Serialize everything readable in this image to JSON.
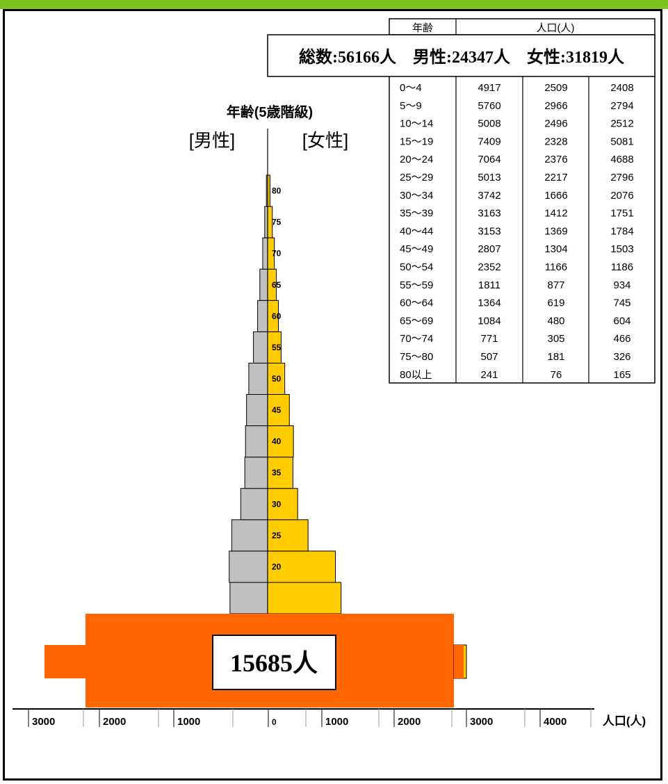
{
  "heading": "年齢(5歳階級)",
  "male_label": "[男性]",
  "female_label": "[女性]",
  "totals_text": "総数:56166人　男性:24347人　女性:31819人",
  "highlight_box_text": "15685人",
  "axis_unit_label": "人口(人)",
  "colors": {
    "male": "#C0C0C0",
    "female": "#FFCC00",
    "highlight": "#FF6600",
    "frame_top": "#7CC421"
  },
  "table": {
    "header_age": "年齢",
    "header_population": "人口(人)",
    "rows": [
      [
        "0～4",
        "4917",
        "2509",
        "2408"
      ],
      [
        "5～9",
        "5760",
        "2966",
        "2794"
      ],
      [
        "10～14",
        "5008",
        "2496",
        "2512"
      ],
      [
        "15～19",
        "7409",
        "2328",
        "5081"
      ],
      [
        "20～24",
        "7064",
        "2376",
        "4688"
      ],
      [
        "25～29",
        "5013",
        "2217",
        "2796"
      ],
      [
        "30～34",
        "3742",
        "1666",
        "2076"
      ],
      [
        "35～39",
        "3163",
        "1412",
        "1751"
      ],
      [
        "40～44",
        "3153",
        "1369",
        "1784"
      ],
      [
        "45～49",
        "2807",
        "1304",
        "1503"
      ],
      [
        "50～54",
        "2352",
        "1166",
        "1186"
      ],
      [
        "55～59",
        "1811",
        "877",
        "934"
      ],
      [
        "60～64",
        "1364",
        "619",
        "745"
      ],
      [
        "65～69",
        "1084",
        "480",
        "604"
      ],
      [
        "70～74",
        "771",
        "305",
        "466"
      ],
      [
        "75～80",
        "507",
        "181",
        "326"
      ],
      [
        "80以上",
        "241",
        "76",
        "165"
      ]
    ]
  },
  "chart_data": {
    "type": "bar",
    "subtype": "population-pyramid",
    "categories": [
      "0～4",
      "5～9",
      "10～14",
      "15～19",
      "20～24",
      "25～29",
      "30～34",
      "35～39",
      "40～44",
      "45～49",
      "50～54",
      "55～59",
      "60～64",
      "65～69",
      "70～74",
      "75～80",
      "80以上"
    ],
    "series": [
      {
        "name": "男性",
        "values": [
          2509,
          2966,
          2496,
          2328,
          2376,
          2217,
          1666,
          1412,
          1369,
          1304,
          1166,
          877,
          619,
          480,
          305,
          181,
          76
        ]
      },
      {
        "name": "女性",
        "values": [
          2408,
          2794,
          2512,
          5081,
          4688,
          2796,
          2076,
          1751,
          1784,
          1503,
          1186,
          934,
          745,
          604,
          466,
          326,
          165
        ]
      }
    ],
    "age_tick_labels": [
      "20",
      "25",
      "30",
      "35",
      "40",
      "45",
      "50",
      "55",
      "60",
      "65",
      "70",
      "75",
      "80"
    ],
    "x_ticks_left": [
      "3000",
      "2000",
      "1000"
    ],
    "x_ticks_right": [
      "0",
      "1000",
      "2000",
      "3000",
      "4000"
    ],
    "xlim_male": [
      0,
      3000
    ],
    "xlim_female": [
      0,
      5000
    ],
    "annotation_value": "15685人",
    "grid": false,
    "legend": "none"
  }
}
